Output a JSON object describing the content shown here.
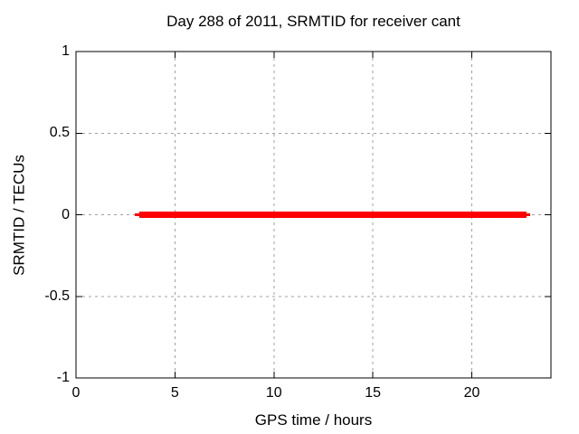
{
  "colors": {
    "background": "#ffffff",
    "border": "#000000",
    "grid": "#a0a0a0",
    "text": "#000000",
    "series_red": "#ff0000"
  },
  "chart_data": {
    "type": "line",
    "title": "Day 288 of 2011, SRMTID for receiver cant",
    "xlabel": "GPS time / hours",
    "ylabel": "SRMTID / TECUs",
    "xlim": [
      0,
      24
    ],
    "ylim": [
      -1,
      1
    ],
    "xticks": [
      0,
      5,
      10,
      15,
      20
    ],
    "yticks": [
      1,
      0.5,
      0,
      -0.5,
      -1
    ],
    "grid": true,
    "grid_style": "dashed",
    "legend": "none",
    "series": [
      {
        "name": "SRMTID",
        "color": "#ff0000",
        "value": 0,
        "description": "constant value 0 TECUs from about 3.0 to 22.9 hours",
        "x_range": [
          3.0,
          22.9
        ],
        "segments": [
          {
            "x1": 2.97,
            "x2": 3.2,
            "y": 0,
            "linewidth": 3
          },
          {
            "x1": 3.2,
            "x2": 22.77,
            "y": 0,
            "linewidth": 7
          },
          {
            "x1": 22.77,
            "x2": 22.95,
            "y": 0,
            "linewidth": 3
          }
        ]
      }
    ]
  }
}
